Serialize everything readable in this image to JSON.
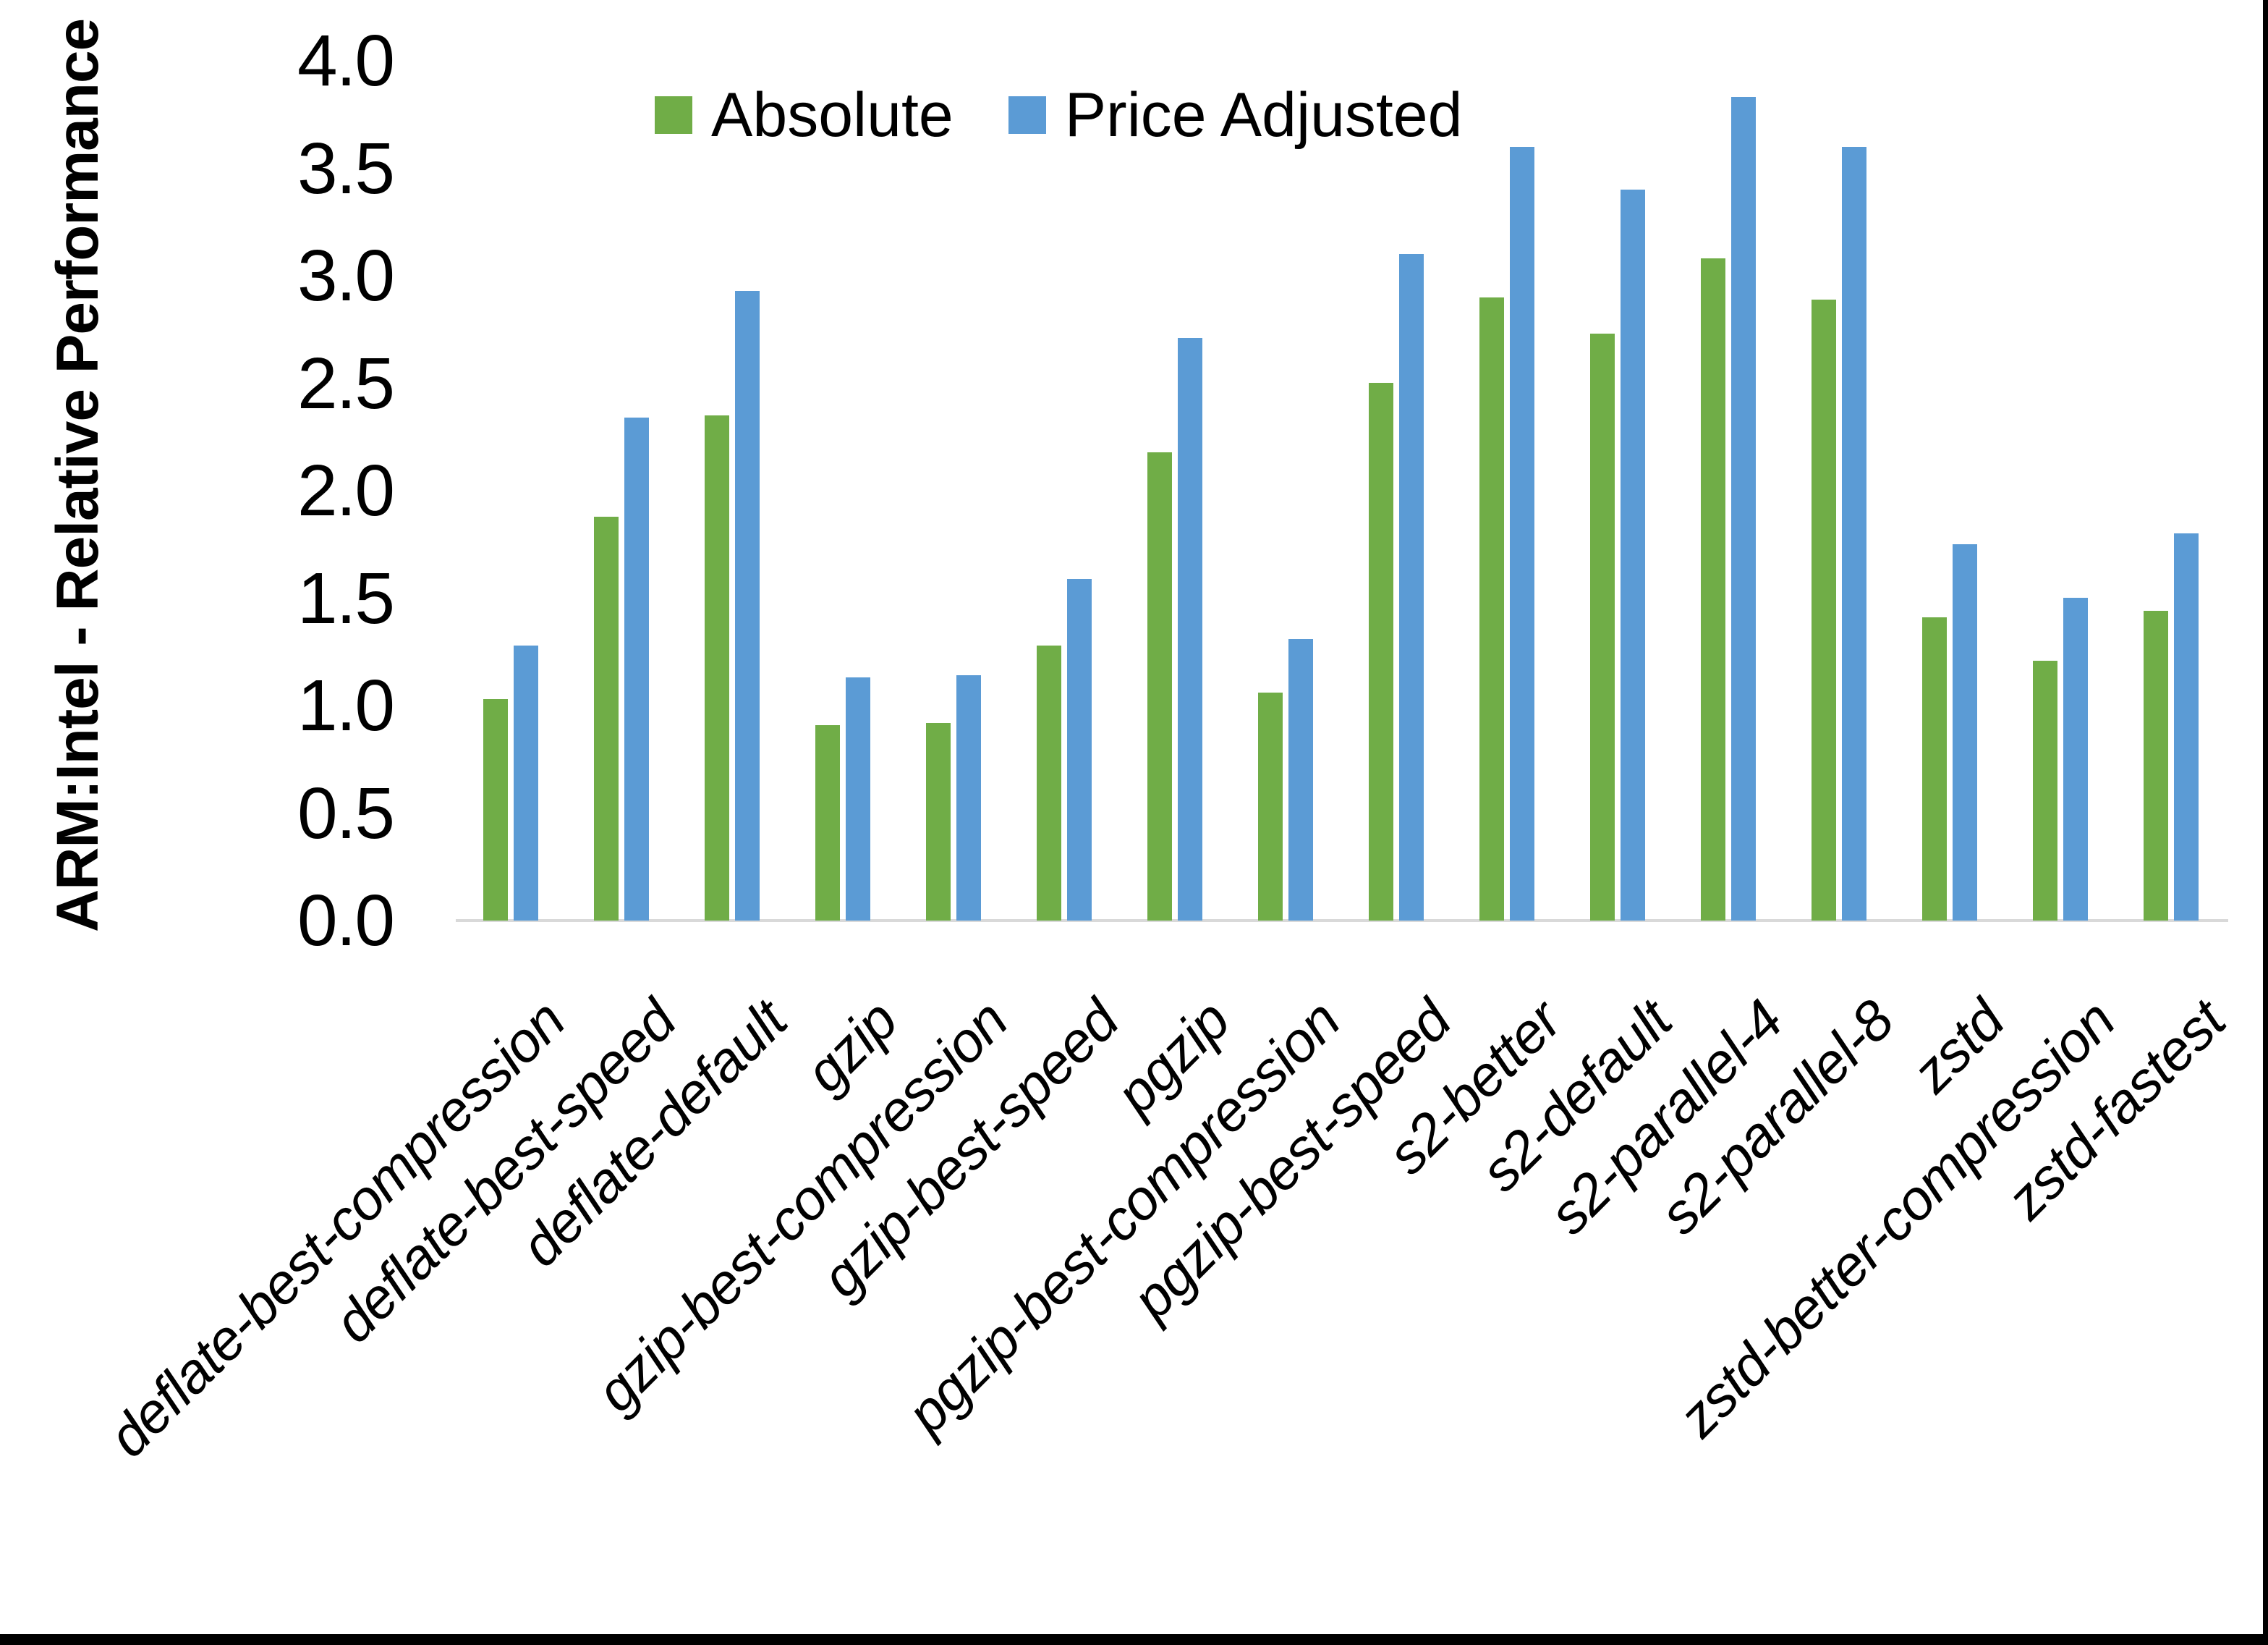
{
  "colors": {
    "absolute_green": "#70AD47",
    "price_adjusted_blue": "#5B9BD5",
    "axis_line_gray": "#D9D9D9",
    "text_black": "#000000",
    "background": "#FFFFFF"
  },
  "chart_data": {
    "type": "bar",
    "title": "",
    "xlabel": "",
    "ylabel": "ARM:Intel - Relative Performance",
    "ylim": [
      0.0,
      4.0
    ],
    "ytick_step": 0.5,
    "y_tick_labels": [
      "0.0",
      "0.5",
      "1.0",
      "1.5",
      "2.0",
      "2.5",
      "3.0",
      "3.5",
      "4.0"
    ],
    "grid": false,
    "legend_position": "top-center",
    "categories": [
      "deflate-best-compression",
      "deflate-best-speed",
      "deflate-default",
      "gzip",
      "gzip-best-compression",
      "gzip-best-speed",
      "pgzip",
      "pgzip-best-compression",
      "pgzip-best-speed",
      "s2-better",
      "s2-default",
      "s2-parallel-4",
      "s2-parallel-8",
      "zstd",
      "zstd-better-compression",
      "zstd-fastest"
    ],
    "series": [
      {
        "name": "Absolute",
        "color": "#70AD47",
        "values": [
          1.03,
          1.88,
          2.35,
          0.91,
          0.92,
          1.28,
          2.18,
          1.06,
          2.5,
          2.9,
          2.73,
          3.08,
          2.89,
          1.41,
          1.21,
          1.44
        ]
      },
      {
        "name": "Price Adjusted",
        "color": "#5B9BD5",
        "values": [
          1.28,
          2.34,
          2.93,
          1.13,
          1.14,
          1.59,
          2.71,
          1.31,
          3.1,
          3.6,
          3.4,
          3.83,
          3.6,
          1.75,
          1.5,
          1.8
        ]
      }
    ]
  }
}
